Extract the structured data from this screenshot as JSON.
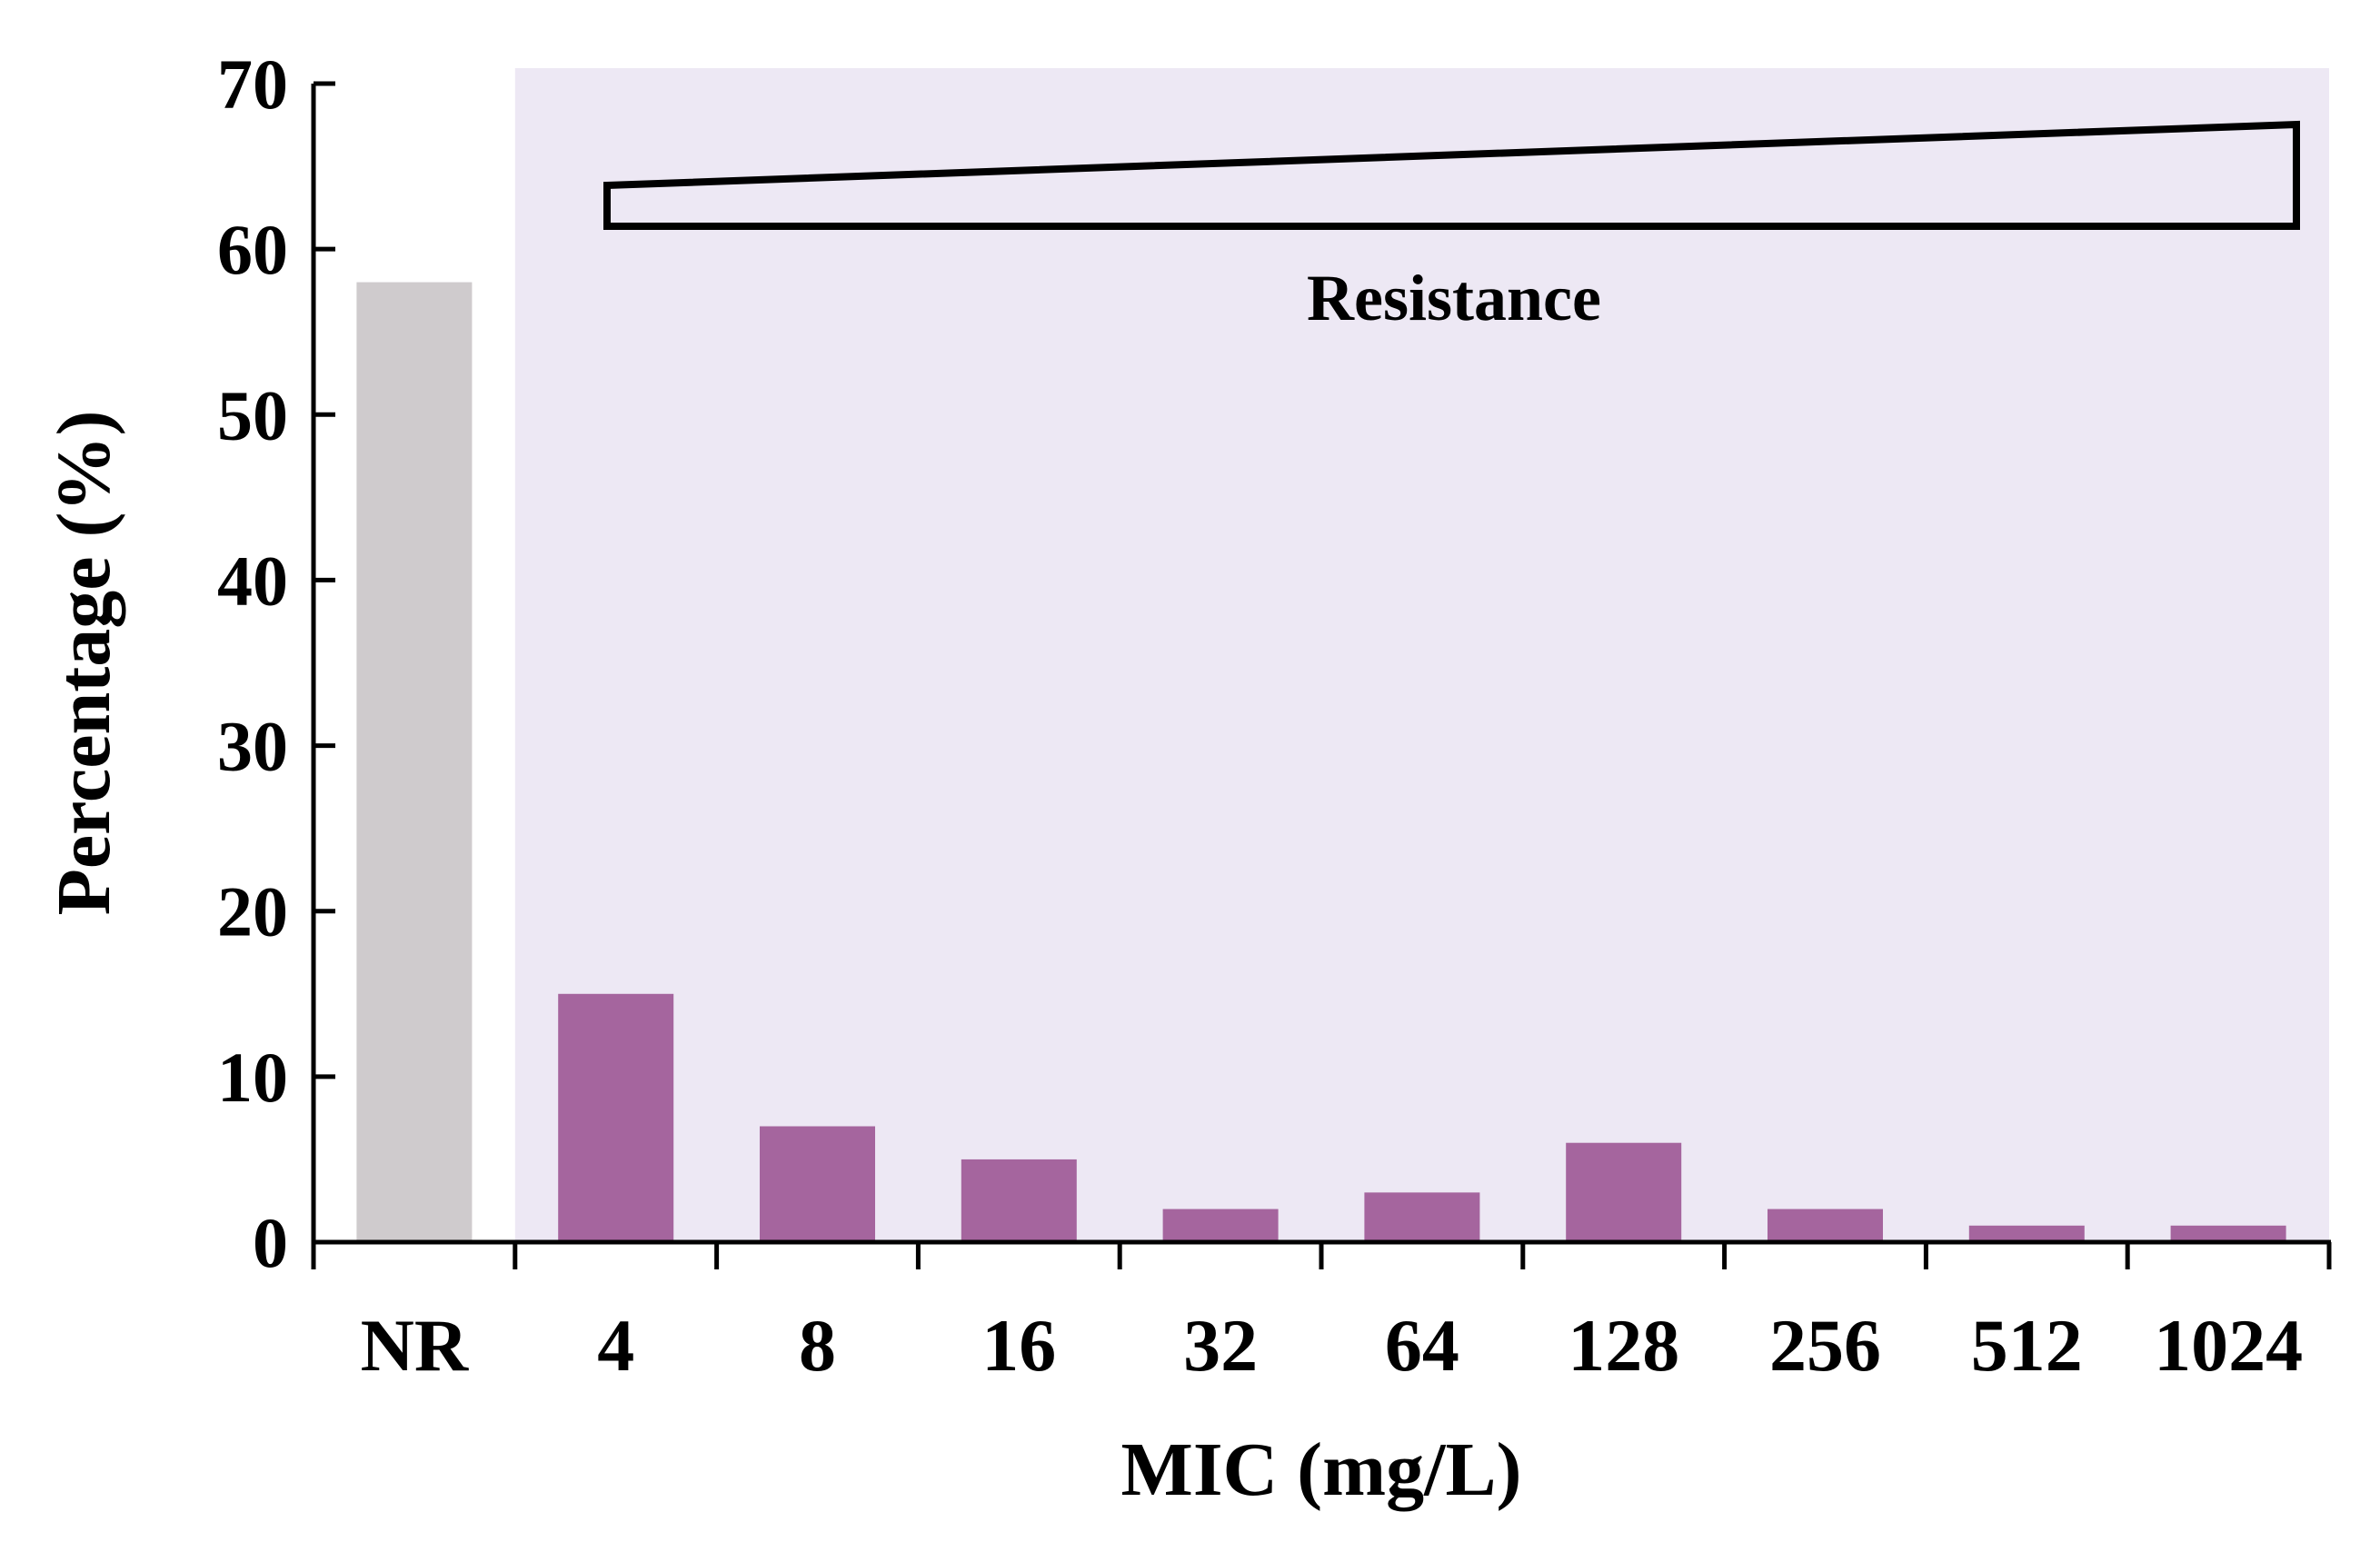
{
  "chart_data": {
    "type": "bar",
    "categories": [
      "NR",
      "4",
      "8",
      "16",
      "32",
      "64",
      "128",
      "256",
      "512",
      "1024"
    ],
    "values": [
      58,
      15,
      7,
      5,
      2,
      3,
      6,
      2,
      1,
      1
    ],
    "xlabel": "MIC (mg/L)",
    "ylabel": "Percentage (%)",
    "ylim": [
      0,
      70
    ],
    "yticks": [
      0,
      10,
      20,
      30,
      40,
      50,
      60,
      70
    ],
    "annotation": "Resistance",
    "colors": {
      "nr_bar": "#cfcbcd",
      "resistant_bar": "#a5659e",
      "resistant_region": "#ede8f4",
      "axis": "#000000"
    }
  }
}
